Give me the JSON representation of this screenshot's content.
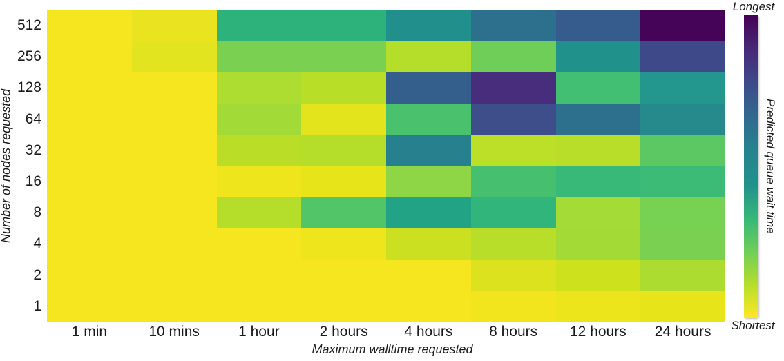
{
  "chart_data": {
    "type": "heatmap",
    "title": "",
    "xlabel": "Maximum walltime requested",
    "ylabel": "Number of nodes requested",
    "x_categories": [
      "1 min",
      "10 mins",
      "1 hour",
      "2 hours",
      "4 hours",
      "8 hours",
      "12 hours",
      "24 hours"
    ],
    "y_categories": [
      "512",
      "256",
      "128",
      "64",
      "32",
      "16",
      "8",
      "4",
      "2",
      "1"
    ],
    "legend": {
      "title": "Predicted queue wait time",
      "top": "Longest",
      "bottom": "Shortest"
    },
    "colormap": "viridis",
    "scale_note": "values_norm are relative wait times estimated from cell colors: 0 = shortest, 1 = longest; rows ordered top (512 nodes) to bottom (1 node)",
    "values_norm": [
      [
        0.03,
        0.07,
        0.38,
        0.38,
        0.47,
        0.64,
        0.72,
        1.0
      ],
      [
        0.03,
        0.09,
        0.22,
        0.22,
        0.11,
        0.23,
        0.44,
        0.78
      ],
      [
        0.03,
        0.03,
        0.13,
        0.12,
        0.7,
        0.91,
        0.3,
        0.43
      ],
      [
        0.03,
        0.03,
        0.16,
        0.08,
        0.29,
        0.77,
        0.64,
        0.5
      ],
      [
        0.03,
        0.03,
        0.11,
        0.11,
        0.57,
        0.1,
        0.12,
        0.26
      ],
      [
        0.03,
        0.03,
        0.05,
        0.07,
        0.19,
        0.3,
        0.33,
        0.32
      ],
      [
        0.03,
        0.03,
        0.11,
        0.27,
        0.4,
        0.34,
        0.16,
        0.22
      ],
      [
        0.03,
        0.03,
        0.03,
        0.05,
        0.1,
        0.12,
        0.16,
        0.22
      ],
      [
        0.03,
        0.03,
        0.03,
        0.03,
        0.03,
        0.09,
        0.1,
        0.13
      ],
      [
        0.03,
        0.03,
        0.03,
        0.03,
        0.03,
        0.04,
        0.05,
        0.08
      ]
    ],
    "cell_colors": [
      [
        "#f5e61f",
        "#e9e41f",
        "#2db27c",
        "#2db27c",
        "#21908d",
        "#2d708e",
        "#365c8d",
        "#450457"
      ],
      [
        "#f5e61f",
        "#e1e41e",
        "#7ad151",
        "#7ad151",
        "#b5de2b",
        "#6ece58",
        "#21918c",
        "#3e4989"
      ],
      [
        "#f5e61f",
        "#f5e61f",
        "#aedd31",
        "#b9de28",
        "#345f8d",
        "#472d7b",
        "#42bf72",
        "#23968e"
      ],
      [
        "#f5e61f",
        "#f5e61f",
        "#a2da37",
        "#e4e41c",
        "#4ac16d",
        "#3d4e8a",
        "#2d708e",
        "#268a8d"
      ],
      [
        "#f5e61f",
        "#f5e61f",
        "#bade27",
        "#b5de2b",
        "#27808e",
        "#bcdf27",
        "#b8de29",
        "#5cc863"
      ],
      [
        "#f5e61f",
        "#f5e61f",
        "#efe51c",
        "#e8e41a",
        "#8ed645",
        "#46c06e",
        "#38b977",
        "#3bbb75"
      ],
      [
        "#f5e61f",
        "#f5e61f",
        "#b5de2b",
        "#52c569",
        "#22a385",
        "#31b57b",
        "#a5db36",
        "#77d153"
      ],
      [
        "#f5e61f",
        "#f5e61f",
        "#f5e61f",
        "#eee51c",
        "#cbe020",
        "#b8de29",
        "#a3da36",
        "#7ad151"
      ],
      [
        "#f5e61f",
        "#f5e61f",
        "#f5e61f",
        "#f5e61f",
        "#f5e61f",
        "#dce31e",
        "#cde11d",
        "#addc30"
      ],
      [
        "#f5e61f",
        "#f5e61f",
        "#f5e61f",
        "#f5e61f",
        "#f5e61f",
        "#f2e51e",
        "#ede51b",
        "#e7e419"
      ]
    ],
    "colorbar_gradient_top_to_bottom": [
      "#440154",
      "#482878",
      "#3e4989",
      "#31688e",
      "#26828e",
      "#21918c",
      "#35b779",
      "#6ece58",
      "#b5de2b",
      "#fde725"
    ],
    "axis_ranges": {
      "grid": false,
      "legend_position": "right-colorbar"
    }
  }
}
